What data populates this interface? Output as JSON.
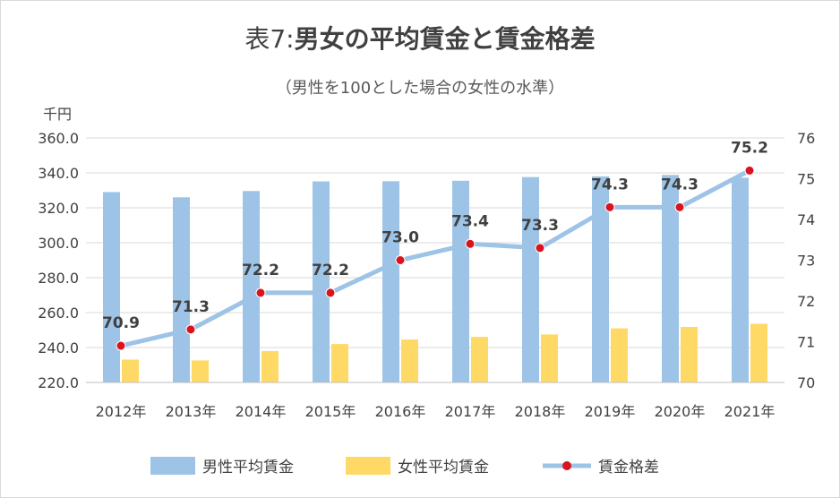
{
  "chart_data": {
    "type": "bar",
    "title_prefix": "表7:",
    "title_main": "男女の平均賃金と賃金格差",
    "subtitle": "（男性を100とした場合の女性の水準）",
    "y_unit": "千円",
    "categories": [
      "2012年",
      "2013年",
      "2014年",
      "2015年",
      "2016年",
      "2017年",
      "2018年",
      "2019年",
      "2020年",
      "2021年"
    ],
    "ylim": [
      220,
      360
    ],
    "yticks": [
      "220.0",
      "240.0",
      "260.0",
      "280.0",
      "300.0",
      "320.0",
      "340.0",
      "360.0"
    ],
    "y2lim": [
      70,
      76
    ],
    "y2ticks": [
      "70",
      "71",
      "72",
      "73",
      "74",
      "75",
      "76"
    ],
    "grid": true,
    "legend_position": "bottom",
    "series": [
      {
        "name": "男性平均賃金",
        "type": "bar",
        "axis": "left",
        "color": "#9dc3e6",
        "values": [
          329.0,
          326.0,
          329.6,
          335.1,
          335.2,
          335.5,
          337.6,
          338.0,
          338.8,
          337.2
        ]
      },
      {
        "name": "女性平均賃金",
        "type": "bar",
        "axis": "left",
        "color": "#ffd966",
        "values": [
          233.1,
          232.6,
          238.0,
          242.0,
          244.6,
          246.1,
          247.5,
          251.0,
          251.8,
          253.6
        ]
      },
      {
        "name": "賃金格差",
        "type": "line",
        "axis": "right",
        "color": "#9dc3e6",
        "marker_color": "#d9141e",
        "values": [
          70.9,
          71.3,
          72.2,
          72.2,
          73.0,
          73.4,
          73.3,
          74.3,
          74.3,
          75.2
        ],
        "labels": [
          "70.9",
          "71.3",
          "72.2",
          "72.2",
          "73.0",
          "73.4",
          "73.3",
          "74.3",
          "74.3",
          "75.2"
        ]
      }
    ]
  }
}
